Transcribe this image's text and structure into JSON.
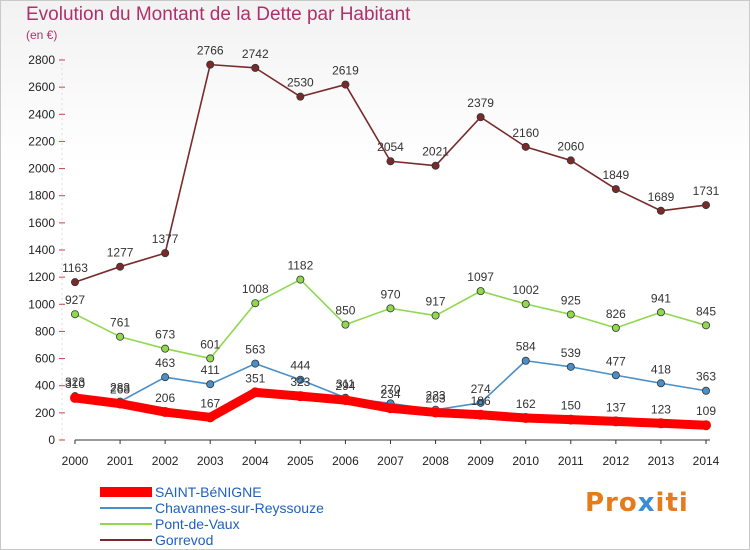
{
  "chart_data": {
    "type": "line",
    "title": "Evolution du Montant de la Dette par Habitant",
    "unit_label": "(en €)",
    "x": [
      "2000",
      "2001",
      "2002",
      "2003",
      "2004",
      "2005",
      "2006",
      "2007",
      "2008",
      "2009",
      "2010",
      "2011",
      "2012",
      "2013",
      "2014"
    ],
    "ylim": [
      0,
      2800
    ],
    "yticks": [
      0,
      200,
      400,
      600,
      800,
      1000,
      1200,
      1400,
      1600,
      1800,
      2000,
      2200,
      2400,
      2600,
      2800
    ],
    "grid": false,
    "legend_position": "bottom-left",
    "series": [
      {
        "name": "SAINT-BéNIGNE",
        "color": "#ff0000",
        "values": [
          310,
          268,
          206,
          167,
          351,
          323,
          294,
          234,
          203,
          186,
          162,
          150,
          137,
          123,
          109
        ]
      },
      {
        "name": "Chavannes-sur-Reyssouze",
        "color": "#4a8fc8",
        "values": [
          323,
          283,
          463,
          411,
          563,
          444,
          311,
          270,
          223,
          274,
          584,
          539,
          477,
          418,
          363
        ]
      },
      {
        "name": "Pont-de-Vaux",
        "color": "#8fd850",
        "values": [
          927,
          761,
          673,
          601,
          1008,
          1182,
          850,
          970,
          917,
          1097,
          1002,
          925,
          826,
          941,
          845
        ]
      },
      {
        "name": "Gorrevod",
        "color": "#7a2a2a",
        "values": [
          1163,
          1277,
          1377,
          2766,
          2742,
          2530,
          2619,
          2054,
          2021,
          2379,
          2160,
          2060,
          1849,
          1689,
          1731
        ]
      }
    ]
  },
  "logo": {
    "part1": "Pro",
    "part2": "x",
    "part3": "iti"
  }
}
